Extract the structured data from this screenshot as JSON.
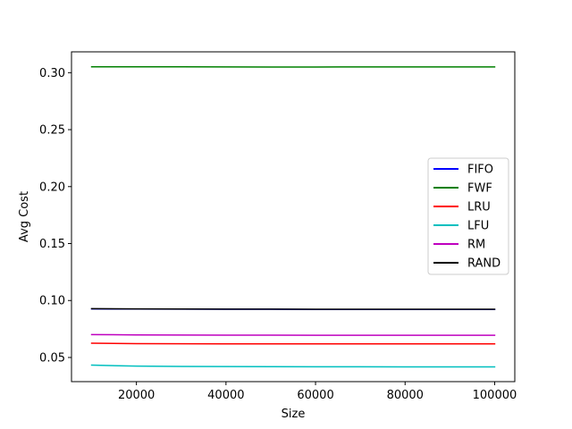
{
  "chart_data": {
    "type": "line",
    "xlabel": "Size",
    "ylabel": "Avg Cost",
    "xlim": [
      5500,
      104500
    ],
    "ylim": [
      0.0288,
      0.3183
    ],
    "xticks": [
      20000,
      40000,
      60000,
      80000,
      100000
    ],
    "xtick_labels": [
      "20000",
      "40000",
      "60000",
      "80000",
      "100000"
    ],
    "yticks": [
      0.05,
      0.1,
      0.15,
      0.2,
      0.25,
      0.3
    ],
    "ytick_labels": [
      "0.05",
      "0.10",
      "0.15",
      "0.20",
      "0.25",
      "0.30"
    ],
    "grid": false,
    "legend_position": "center-right",
    "x": [
      10000,
      20000,
      30000,
      40000,
      50000,
      60000,
      70000,
      80000,
      90000,
      100000
    ],
    "series": [
      {
        "name": "FIFO",
        "color": "#0000ff",
        "values": [
          0.0926,
          0.0925,
          0.0924,
          0.0923,
          0.0923,
          0.0922,
          0.0922,
          0.0922,
          0.0922,
          0.0922
        ]
      },
      {
        "name": "FWF",
        "color": "#008000",
        "values": [
          0.3052,
          0.3052,
          0.3052,
          0.3051,
          0.305,
          0.305,
          0.3051,
          0.3051,
          0.3051,
          0.3051
        ]
      },
      {
        "name": "LRU",
        "color": "#ff0000",
        "values": [
          0.0625,
          0.0621,
          0.062,
          0.0619,
          0.0619,
          0.0619,
          0.0619,
          0.0619,
          0.0619,
          0.0619
        ]
      },
      {
        "name": "LFU",
        "color": "#00bfbf",
        "values": [
          0.0433,
          0.0424,
          0.0421,
          0.042,
          0.0419,
          0.0418,
          0.0418,
          0.0417,
          0.0417,
          0.0417
        ]
      },
      {
        "name": "RM",
        "color": "#bf00bf",
        "values": [
          0.0701,
          0.0698,
          0.0697,
          0.0696,
          0.0696,
          0.0695,
          0.0695,
          0.0695,
          0.0695,
          0.0695
        ]
      },
      {
        "name": "RAND",
        "color": "#000000",
        "values": [
          0.0928,
          0.0926,
          0.0925,
          0.0924,
          0.0924,
          0.0923,
          0.0923,
          0.0923,
          0.0923,
          0.0923
        ]
      }
    ]
  }
}
